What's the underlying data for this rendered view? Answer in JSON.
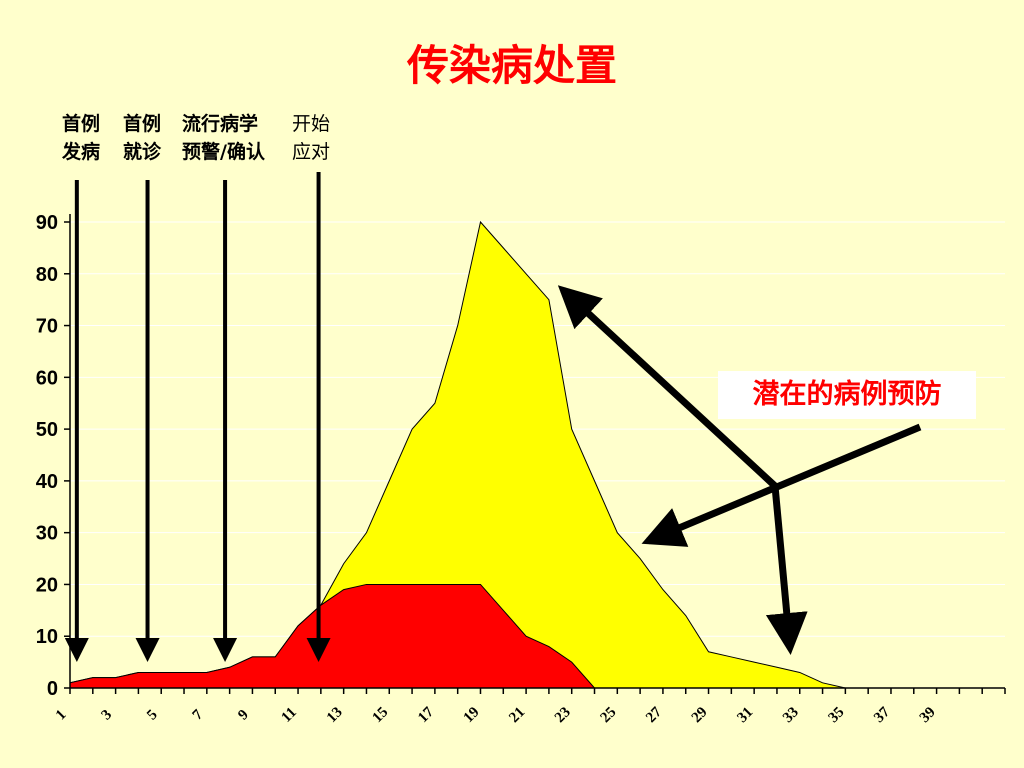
{
  "title": "传染病处置",
  "annotations": {
    "events": [
      {
        "lines": [
          "首例",
          "发病"
        ],
        "day": 1.3
      },
      {
        "lines": [
          "首例",
          "就诊"
        ],
        "day": 4.4
      },
      {
        "lines": [
          "流行病学",
          "预警/确认"
        ],
        "day": 7.8
      },
      {
        "lines": [
          "开始",
          "应对"
        ],
        "day": 11.9
      }
    ],
    "callout": "潜在的病例预防"
  },
  "colors": {
    "background": "#ffffcc",
    "potential_area": "#ffff00",
    "actual_area": "#ff0000",
    "title": "#ff0000",
    "grid": "#ffffff"
  },
  "chart_data": {
    "type": "area",
    "x": [
      1,
      2,
      3,
      4,
      5,
      6,
      7,
      8,
      9,
      10,
      11,
      12,
      13,
      14,
      15,
      16,
      17,
      18,
      19,
      20,
      21,
      22,
      23,
      24,
      25,
      26,
      27,
      28,
      29,
      30,
      31,
      32,
      33,
      34,
      35,
      36,
      37,
      38,
      39,
      40,
      41,
      42
    ],
    "x_tick_labels": [
      "1",
      "3",
      "5",
      "7",
      "9",
      "11",
      "13",
      "15",
      "17",
      "19",
      "21",
      "23",
      "25",
      "27",
      "29",
      "31",
      "33",
      "35",
      "37",
      "39"
    ],
    "ylim": [
      0,
      90
    ],
    "y_ticks": [
      0,
      10,
      20,
      30,
      40,
      50,
      60,
      70,
      80,
      90
    ],
    "grid": true,
    "series": [
      {
        "values": [
          1,
          2,
          2,
          3,
          3,
          3,
          3,
          4,
          6,
          6,
          12,
          16,
          24,
          30,
          40,
          50,
          55,
          70,
          90,
          85,
          80,
          75,
          50,
          40,
          30,
          25,
          19,
          14,
          7,
          6,
          5,
          4,
          3,
          1,
          0,
          0,
          0,
          0,
          0,
          0,
          0,
          0
        ]
      },
      {
        "values": [
          1,
          2,
          2,
          3,
          3,
          3,
          3,
          4,
          6,
          6,
          12,
          16,
          19,
          20,
          20,
          20,
          20,
          20,
          20,
          15,
          10,
          8,
          5,
          0,
          0,
          0,
          0,
          0,
          0,
          0,
          0,
          0,
          0,
          0,
          0,
          0,
          0,
          0,
          0,
          0,
          0,
          0
        ]
      }
    ]
  }
}
